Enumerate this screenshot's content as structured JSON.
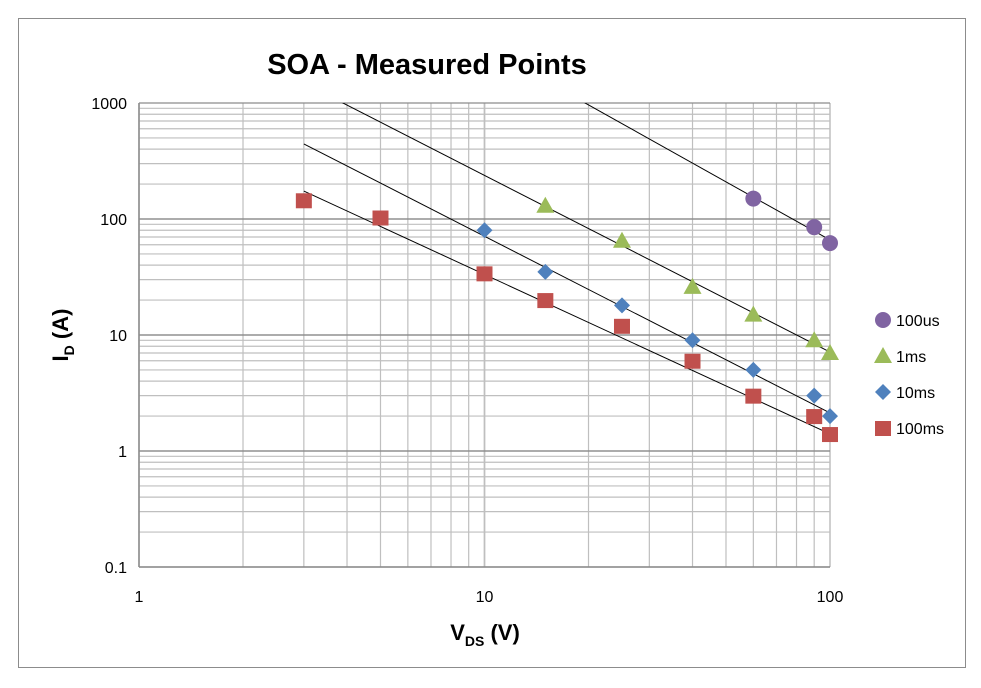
{
  "chart_data": {
    "type": "scatter",
    "title": "SOA - Measured Points",
    "xlabel": {
      "main": "V",
      "sub": "DS",
      "unit": " (V)"
    },
    "ylabel": {
      "main": "I",
      "sub": "D",
      "unit": " (A)"
    },
    "xscale": "log",
    "yscale": "log",
    "xlim": [
      1,
      100
    ],
    "ylim": [
      0.1,
      1000
    ],
    "xticks": [
      "1",
      "10",
      "100"
    ],
    "yticks": [
      "0.1",
      "1",
      "10",
      "100",
      "1000"
    ],
    "grid": true,
    "legend_position": "right",
    "series": [
      {
        "name": "100us",
        "marker": "circle",
        "color": "#8064a2",
        "x": [
          60,
          90,
          100
        ],
        "y": [
          150,
          85,
          62
        ],
        "trend": {
          "type": "power",
          "a": 141600,
          "b": -1.666,
          "xrange": [
            1,
            100
          ]
        }
      },
      {
        "name": "1ms",
        "marker": "triangle",
        "color": "#9bbb59",
        "x": [
          15,
          25,
          40,
          60,
          90,
          100
        ],
        "y": [
          130,
          65,
          26,
          15,
          9,
          7
        ],
        "trend": {
          "type": "power",
          "a": 7925,
          "b": -1.523,
          "xrange": [
            1,
            100
          ]
        }
      },
      {
        "name": "10ms",
        "marker": "diamond",
        "color": "#4f81bd",
        "x": [
          10,
          15,
          25,
          40,
          60,
          90,
          100
        ],
        "y": [
          80,
          35,
          18,
          9,
          5,
          3,
          2
        ],
        "trend": {
          "type": "power",
          "a": 2366,
          "b": -1.523,
          "xrange": [
            3,
            100
          ]
        }
      },
      {
        "name": "100ms",
        "marker": "square",
        "color": "#c0504d",
        "x": [
          3,
          5,
          10,
          15,
          25,
          40,
          60,
          90,
          100
        ],
        "y": [
          145,
          103,
          34,
          20,
          12,
          6,
          3,
          2,
          1.4
        ],
        "trend": {
          "type": "power",
          "a": 789,
          "b": -1.375,
          "xrange": [
            3,
            100
          ]
        }
      }
    ]
  }
}
